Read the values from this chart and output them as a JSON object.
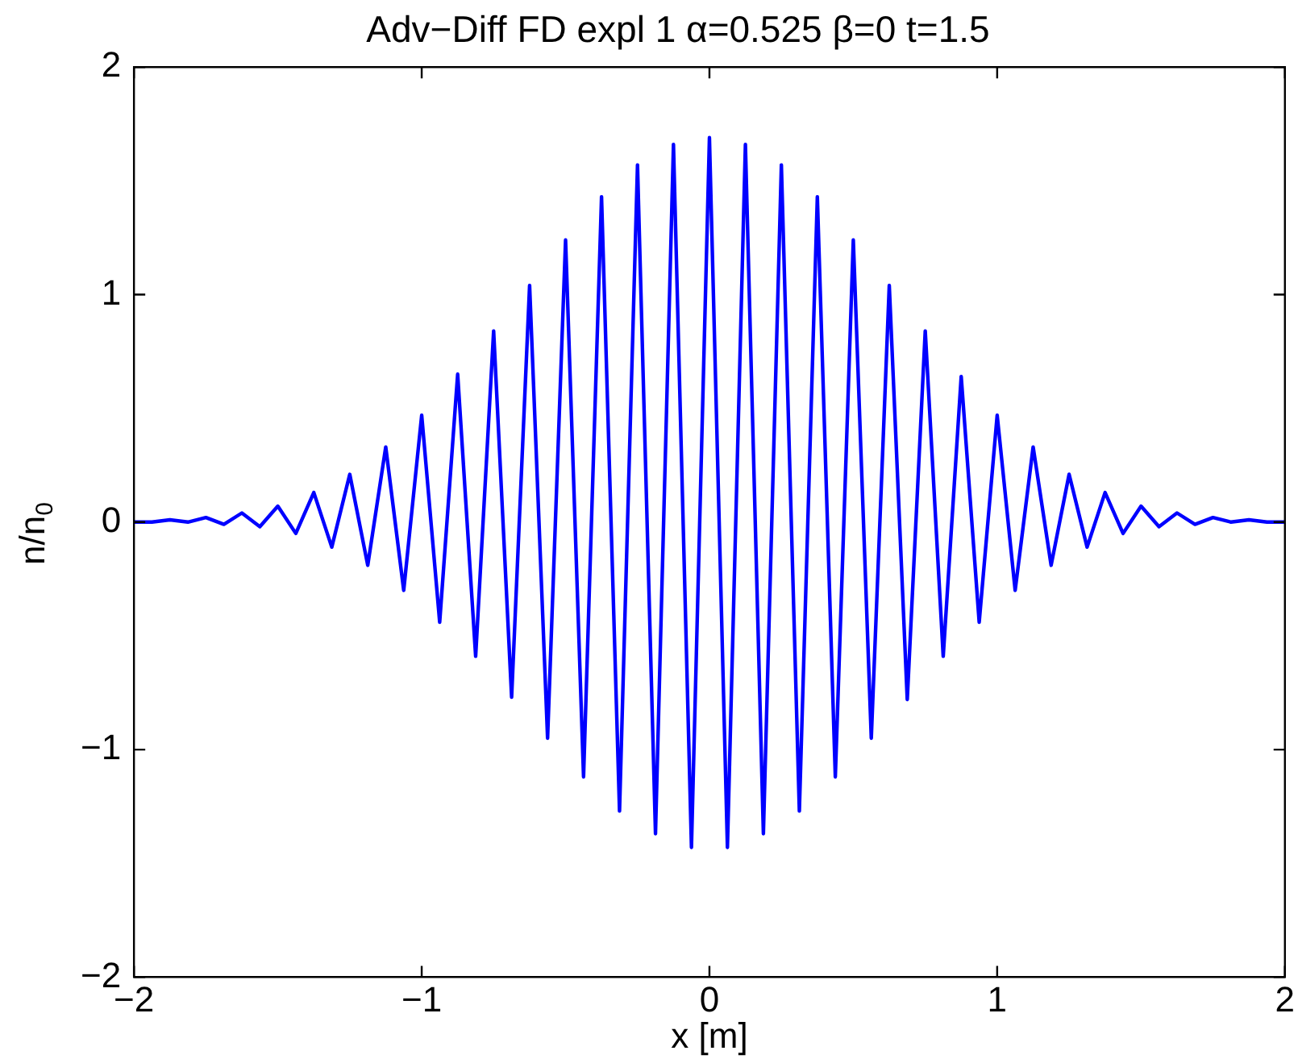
{
  "chart_data": {
    "type": "line",
    "title": "Adv−Diff FD expl 1 α=0.525 β=0 t=1.5",
    "xlabel": "x [m]",
    "ylabel": "n/n$_{0}$",
    "xlim": [
      -2,
      2
    ],
    "xticks": [
      -2,
      -1,
      0,
      1,
      2
    ],
    "ylim": [
      -2,
      2
    ],
    "yticks": [
      -2,
      -1,
      0,
      1,
      2
    ],
    "marker": "none",
    "line_style": "solid",
    "series": [
      {
        "color": "#0000ff",
        "x": [
          -2,
          -1.9375,
          -1.875,
          -1.8125,
          -1.75,
          -1.6875,
          -1.625,
          -1.5625,
          -1.5,
          -1.4375,
          -1.375,
          -1.3125,
          -1.25,
          -1.1875,
          -1.125,
          -1.0625,
          -1,
          -0.9375,
          -0.875,
          -0.8125,
          -0.75,
          -0.6875,
          -0.625,
          -0.5625,
          -0.5,
          -0.4375,
          -0.375,
          -0.3125,
          -0.25,
          -0.1875,
          -0.125,
          -0.0625,
          0,
          0.0625,
          0.125,
          0.1875,
          0.25,
          0.3125,
          0.375,
          0.4375,
          0.5,
          0.5625,
          0.625,
          0.6875,
          0.75,
          0.8125,
          0.875,
          0.9375,
          1,
          1.0625,
          1.125,
          1.1875,
          1.25,
          1.3125,
          1.375,
          1.4375,
          1.5,
          1.5625,
          1.625,
          1.6875,
          1.75,
          1.8125,
          1.875,
          1.9375,
          2
        ],
        "values": [
          0,
          0,
          0.01,
          0,
          0.02,
          -0.01,
          0.04,
          -0.02,
          0.07,
          -0.05,
          0.13,
          -0.11,
          0.21,
          -0.19,
          0.33,
          -0.3,
          0.47,
          -0.44,
          0.65,
          -0.59,
          0.84,
          -0.77,
          1.04,
          -0.95,
          1.24,
          -1.12,
          1.43,
          -1.27,
          1.57,
          -1.37,
          1.66,
          -1.43,
          1.69,
          -1.43,
          1.66,
          -1.37,
          1.57,
          -1.27,
          1.43,
          -1.12,
          1.24,
          -0.95,
          1.04,
          -0.78,
          0.84,
          -0.59,
          0.64,
          -0.44,
          0.47,
          -0.3,
          0.33,
          -0.19,
          0.21,
          -0.11,
          0.13,
          -0.05,
          0.07,
          -0.02,
          0.04,
          -0.01,
          0.02,
          0,
          0.01,
          0,
          0
        ]
      }
    ]
  }
}
